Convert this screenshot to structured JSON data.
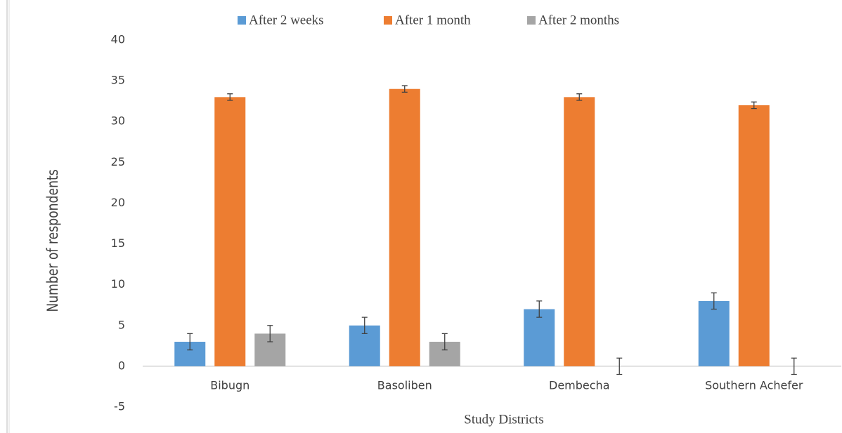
{
  "chart_data": {
    "type": "bar",
    "x_label": "Study Districts",
    "y_label": "Number of respondents",
    "categories": [
      "Bibugn",
      "Basoliben",
      "Dembecha",
      "Southern Achefer"
    ],
    "series": [
      {
        "name": "After 2 weeks",
        "color": "#5b9bd5",
        "values": [
          3,
          5,
          7,
          8
        ],
        "errors": [
          1,
          1,
          1,
          1
        ]
      },
      {
        "name": "After 1 month",
        "color": "#ed7d31",
        "values": [
          33,
          34,
          33,
          32
        ],
        "errors": [
          0.4,
          0.4,
          0.4,
          0.4
        ]
      },
      {
        "name": "After 2 months",
        "color": "#a5a5a5",
        "values": [
          4,
          3,
          0,
          0
        ],
        "errors": [
          1,
          1,
          1,
          1
        ]
      }
    ],
    "ylim": [
      -5,
      40
    ],
    "yticks": [
      -5,
      0,
      5,
      10,
      15,
      20,
      25,
      30,
      35,
      40
    ],
    "grid": false,
    "legend": "top"
  }
}
